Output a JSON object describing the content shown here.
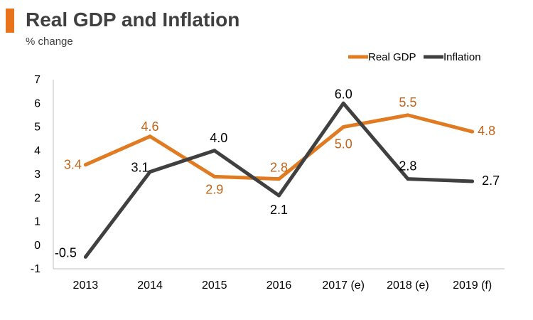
{
  "header": {
    "title": "Real GDP and Inflation",
    "subtitle": "% change"
  },
  "chart_data": {
    "type": "line",
    "title": "Real GDP and Inflation",
    "ylabel": "% change",
    "categories": [
      "2013",
      "2014",
      "2015",
      "2016",
      "2017 (e)",
      "2018 (e)",
      "2019 (f)"
    ],
    "ylim": [
      -1,
      7
    ],
    "yticks": [
      "-1",
      "0",
      "1",
      "2",
      "3",
      "4",
      "5",
      "6",
      "7"
    ],
    "grid": false,
    "legend_position": "top-right",
    "series": [
      {
        "name": "Real GDP",
        "color": "#e07b22",
        "values": [
          3.4,
          4.6,
          2.9,
          2.8,
          5.0,
          5.5,
          4.8
        ],
        "labels": [
          "3.4",
          "4.6",
          "2.9",
          "2.8",
          "5.0",
          "5.5",
          "4.8"
        ]
      },
      {
        "name": "Inflation",
        "color": "#404040",
        "values": [
          -0.5,
          3.1,
          4.0,
          2.1,
          6.0,
          2.8,
          2.7
        ],
        "labels": [
          "-0.5",
          "3.1",
          "4.0",
          "2.1",
          "6.0",
          "2.8",
          "2.7"
        ]
      }
    ]
  },
  "colors": {
    "accent": "#e8731a",
    "gdp": "#e07b22",
    "inflation": "#404040",
    "gdp_label": "#c0651c"
  }
}
